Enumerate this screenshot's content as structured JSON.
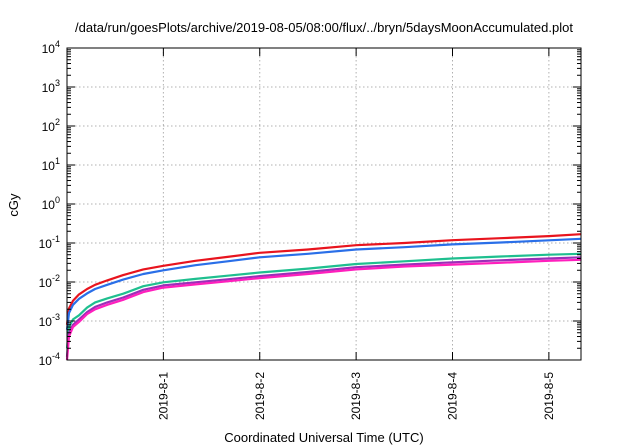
{
  "chart_data": {
    "type": "line",
    "title": "/data/run/goesPlots/archive/2019-08-05/08:00/flux/../bryn/5daysMoonAccumulated.plot",
    "xlabel": "Coordinated Universal Time (UTC)",
    "ylabel": "cGy",
    "yscale": "log",
    "ylim": [
      0.0001,
      10000
    ],
    "xlim": [
      "2019-07-31T00:00",
      "2019-08-05T08:00"
    ],
    "grid": true,
    "legend": "none",
    "x_ticks": [
      "2019-8-1",
      "2019-8-2",
      "2019-8-3",
      "2019-8-4",
      "2019-8-5"
    ],
    "y_ticks": [
      {
        "value": 0.0001,
        "base": "10",
        "exp": "-4"
      },
      {
        "value": 0.001,
        "base": "10",
        "exp": "-3"
      },
      {
        "value": 0.01,
        "base": "10",
        "exp": "-2"
      },
      {
        "value": 0.1,
        "base": "10",
        "exp": "-1"
      },
      {
        "value": 1,
        "base": "10",
        "exp": "0"
      },
      {
        "value": 10,
        "base": "10",
        "exp": "1"
      },
      {
        "value": 100,
        "base": "10",
        "exp": "2"
      },
      {
        "value": 1000,
        "base": "10",
        "exp": "3"
      },
      {
        "value": 10000,
        "base": "10",
        "exp": "4"
      }
    ],
    "series": [
      {
        "color": "#e8141e",
        "points": [
          [
            "2019-07-31T00:00",
            0.0008
          ],
          [
            "2019-07-31T00:30",
            0.0021
          ],
          [
            "2019-07-31T01:30",
            0.0033
          ],
          [
            "2019-07-31T03:00",
            0.0048
          ],
          [
            "2019-07-31T05:00",
            0.0066
          ],
          [
            "2019-07-31T07:00",
            0.0085
          ],
          [
            "2019-07-31T10:00",
            0.011
          ],
          [
            "2019-07-31T14:00",
            0.015
          ],
          [
            "2019-07-31T19:00",
            0.021
          ],
          [
            "2019-08-01T00:00",
            0.026
          ],
          [
            "2019-08-01T08:00",
            0.035
          ],
          [
            "2019-08-01T16:00",
            0.044
          ],
          [
            "2019-08-02T00:00",
            0.056
          ],
          [
            "2019-08-02T12:00",
            0.068
          ],
          [
            "2019-08-03T00:00",
            0.088
          ],
          [
            "2019-08-03T12:00",
            0.1
          ],
          [
            "2019-08-04T00:00",
            0.118
          ],
          [
            "2019-08-04T12:00",
            0.133
          ],
          [
            "2019-08-05T00:00",
            0.15
          ],
          [
            "2019-08-05T08:00",
            0.168
          ]
        ]
      },
      {
        "color": "#2a6fe8",
        "points": [
          [
            "2019-07-31T00:00",
            0.0006
          ],
          [
            "2019-07-31T00:30",
            0.0016
          ],
          [
            "2019-07-31T01:30",
            0.0026
          ],
          [
            "2019-07-31T03:00",
            0.0037
          ],
          [
            "2019-07-31T05:00",
            0.0051
          ],
          [
            "2019-07-31T07:00",
            0.0066
          ],
          [
            "2019-07-31T10:00",
            0.0085
          ],
          [
            "2019-07-31T14:00",
            0.0115
          ],
          [
            "2019-07-31T19:00",
            0.016
          ],
          [
            "2019-08-01T00:00",
            0.02
          ],
          [
            "2019-08-01T08:00",
            0.027
          ],
          [
            "2019-08-01T16:00",
            0.034
          ],
          [
            "2019-08-02T00:00",
            0.043
          ],
          [
            "2019-08-02T12:00",
            0.053
          ],
          [
            "2019-08-03T00:00",
            0.068
          ],
          [
            "2019-08-03T12:00",
            0.078
          ],
          [
            "2019-08-04T00:00",
            0.092
          ],
          [
            "2019-08-04T12:00",
            0.103
          ],
          [
            "2019-08-05T00:00",
            0.117
          ],
          [
            "2019-08-05T08:00",
            0.128
          ]
        ]
      },
      {
        "color": "#1fbf8f",
        "points": [
          [
            "2019-07-31T00:00",
            0.0002
          ],
          [
            "2019-07-31T00:30",
            0.0007
          ],
          [
            "2019-07-31T01:30",
            0.0011
          ],
          [
            "2019-07-31T03:00",
            0.0014
          ],
          [
            "2019-07-31T05:00",
            0.0022
          ],
          [
            "2019-07-31T07:00",
            0.003
          ],
          [
            "2019-07-31T10:00",
            0.0038
          ],
          [
            "2019-07-31T14:00",
            0.005
          ],
          [
            "2019-07-31T19:00",
            0.0078
          ],
          [
            "2019-08-01T00:00",
            0.0098
          ],
          [
            "2019-08-01T08:00",
            0.012
          ],
          [
            "2019-08-01T16:00",
            0.0145
          ],
          [
            "2019-08-02T00:00",
            0.0175
          ],
          [
            "2019-08-02T12:00",
            0.022
          ],
          [
            "2019-08-03T00:00",
            0.029
          ],
          [
            "2019-08-03T12:00",
            0.034
          ],
          [
            "2019-08-04T00:00",
            0.04
          ],
          [
            "2019-08-04T12:00",
            0.045
          ],
          [
            "2019-08-05T00:00",
            0.05
          ],
          [
            "2019-08-05T08:00",
            0.053
          ]
        ]
      },
      {
        "color": "#9b2fb8",
        "points": [
          [
            "2019-07-31T00:00",
            0.00012
          ],
          [
            "2019-07-31T00:30",
            0.0005
          ],
          [
            "2019-07-31T01:30",
            0.0008
          ],
          [
            "2019-07-31T03:00",
            0.0011
          ],
          [
            "2019-07-31T05:00",
            0.0017
          ],
          [
            "2019-07-31T07:00",
            0.0023
          ],
          [
            "2019-07-31T10:00",
            0.003
          ],
          [
            "2019-07-31T14:00",
            0.004
          ],
          [
            "2019-07-31T19:00",
            0.0063
          ],
          [
            "2019-08-01T00:00",
            0.0082
          ],
          [
            "2019-08-01T08:00",
            0.0098
          ],
          [
            "2019-08-01T16:00",
            0.0117
          ],
          [
            "2019-08-02T00:00",
            0.0142
          ],
          [
            "2019-08-02T12:00",
            0.018
          ],
          [
            "2019-08-03T00:00",
            0.024
          ],
          [
            "2019-08-03T12:00",
            0.028
          ],
          [
            "2019-08-04T00:00",
            0.032
          ],
          [
            "2019-08-04T12:00",
            0.036
          ],
          [
            "2019-08-05T00:00",
            0.04
          ],
          [
            "2019-08-05T08:00",
            0.043
          ]
        ]
      },
      {
        "color": "#ff1fbd",
        "points": [
          [
            "2019-07-31T00:00",
            0.0001
          ],
          [
            "2019-07-31T00:30",
            0.0004
          ],
          [
            "2019-07-31T01:30",
            0.0007
          ],
          [
            "2019-07-31T03:00",
            0.00095
          ],
          [
            "2019-07-31T05:00",
            0.0015
          ],
          [
            "2019-07-31T07:00",
            0.002
          ],
          [
            "2019-07-31T10:00",
            0.0026
          ],
          [
            "2019-07-31T14:00",
            0.0035
          ],
          [
            "2019-07-31T19:00",
            0.0055
          ],
          [
            "2019-08-01T00:00",
            0.0072
          ],
          [
            "2019-08-01T08:00",
            0.0087
          ],
          [
            "2019-08-01T16:00",
            0.0104
          ],
          [
            "2019-08-02T00:00",
            0.0126
          ],
          [
            "2019-08-02T12:00",
            0.016
          ],
          [
            "2019-08-03T00:00",
            0.021
          ],
          [
            "2019-08-03T12:00",
            0.025
          ],
          [
            "2019-08-04T00:00",
            0.028
          ],
          [
            "2019-08-04T12:00",
            0.031
          ],
          [
            "2019-08-05T00:00",
            0.035
          ],
          [
            "2019-08-05T08:00",
            0.037
          ]
        ]
      }
    ]
  }
}
